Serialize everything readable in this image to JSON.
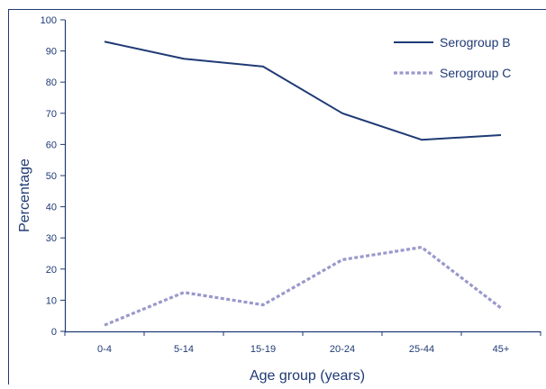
{
  "chart_data": {
    "type": "line",
    "categories": [
      "0-4",
      "5-14",
      "15-19",
      "20-24",
      "25-44",
      "45+"
    ],
    "series": [
      {
        "name": "Serogroup B",
        "values": [
          93,
          87.5,
          85,
          70,
          61.5,
          63
        ],
        "color": "#1f3a75",
        "style": "solid"
      },
      {
        "name": "Serogroup C",
        "values": [
          2,
          12.5,
          8.5,
          23,
          27,
          7.5
        ],
        "color": "#9999cc",
        "style": "dashed"
      }
    ],
    "title": "",
    "xlabel": "Age group (years)",
    "ylabel": "Percentage",
    "ylim": [
      0,
      100
    ],
    "yticks": [
      0,
      10,
      20,
      30,
      40,
      50,
      60,
      70,
      80,
      90,
      100
    ],
    "grid": false,
    "legend_position": "top-right",
    "colors": {
      "axis": "#1f3a75",
      "text": "#1f3a75"
    }
  }
}
